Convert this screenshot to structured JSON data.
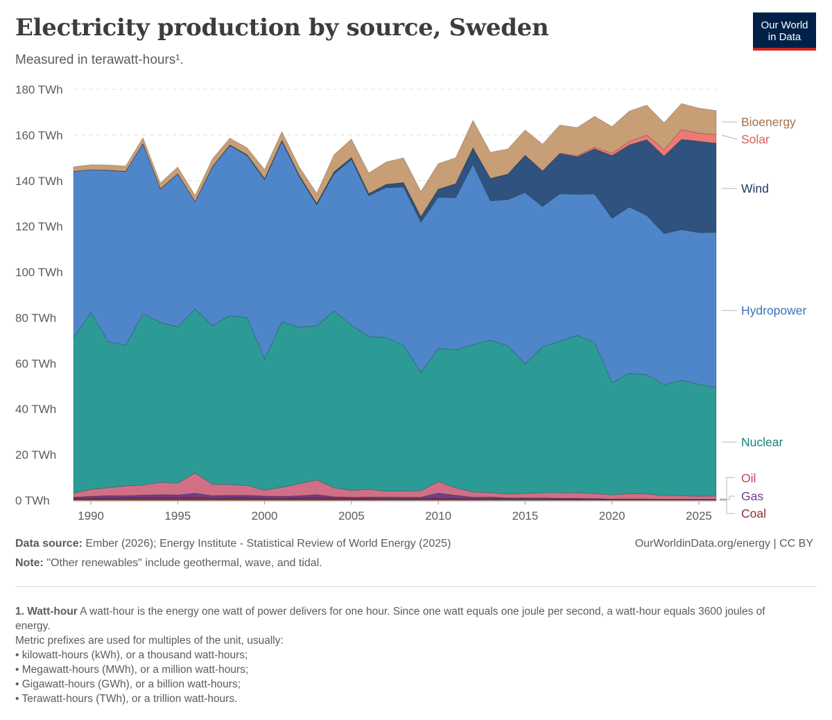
{
  "header": {
    "title": "Electricity production by source, Sweden",
    "subtitle": "Measured in terawatt-hours¹.",
    "logo_line1": "Our World",
    "logo_line2": "in Data"
  },
  "chart_data": {
    "type": "area",
    "stacked": true,
    "title": "Electricity production by source, Sweden",
    "ylabel": "TWh",
    "xlabel": "",
    "ylim": [
      0,
      180
    ],
    "xlim": [
      1989,
      2026
    ],
    "y_ticks": [
      0,
      20,
      40,
      60,
      80,
      100,
      120,
      140,
      160,
      180
    ],
    "y_tick_labels": [
      "0 TWh",
      "20 TWh",
      "40 TWh",
      "60 TWh",
      "80 TWh",
      "100 TWh",
      "120 TWh",
      "140 TWh",
      "160 TWh",
      "180 TWh"
    ],
    "x_ticks": [
      1990,
      1995,
      2000,
      2005,
      2010,
      2015,
      2020,
      2025
    ],
    "x_tick_labels": [
      "1990",
      "1995",
      "2000",
      "2005",
      "2010",
      "2015",
      "2020",
      "2025"
    ],
    "grid": "horizontal dashed",
    "legend": "right, inline labels",
    "x": [
      1989,
      1990,
      1991,
      1992,
      1993,
      1994,
      1995,
      1996,
      1997,
      1998,
      1999,
      2000,
      2001,
      2002,
      2003,
      2004,
      2005,
      2006,
      2007,
      2008,
      2009,
      2010,
      2011,
      2012,
      2013,
      2014,
      2015,
      2016,
      2017,
      2018,
      2019,
      2020,
      2021,
      2022,
      2023,
      2024,
      2025,
      2026
    ],
    "series": [
      {
        "name": "Coal",
        "color": "#883039",
        "values": [
          0.9,
          1.0,
          1.1,
          1.2,
          1.2,
          1.3,
          1.3,
          1.5,
          1.1,
          1.2,
          1.2,
          1.0,
          1.0,
          1.1,
          1.3,
          1.0,
          0.9,
          0.9,
          0.8,
          0.8,
          0.8,
          1.0,
          0.9,
          0.8,
          0.8,
          0.7,
          0.7,
          0.7,
          0.6,
          0.6,
          0.5,
          0.4,
          0.4,
          0.4,
          0.3,
          0.3,
          0.3,
          0.3
        ]
      },
      {
        "name": "Gas",
        "color": "#6d3e91",
        "values": [
          0.5,
          0.8,
          1.0,
          0.9,
          1.1,
          1.2,
          1.1,
          1.6,
          1.0,
          1.0,
          1.0,
          0.9,
          0.8,
          0.9,
          1.2,
          0.6,
          0.5,
          0.6,
          0.7,
          0.6,
          0.6,
          2.2,
          1.3,
          0.6,
          0.7,
          0.4,
          0.4,
          0.4,
          0.3,
          0.3,
          0.3,
          0.2,
          0.2,
          0.2,
          0.2,
          0.2,
          0.2,
          0.2
        ]
      },
      {
        "name": "Oil",
        "color": "#d07086",
        "values": [
          1.7,
          3.0,
          3.4,
          4.2,
          4.4,
          5.4,
          5.1,
          8.9,
          4.9,
          4.7,
          4.3,
          2.5,
          3.9,
          5.3,
          6.4,
          3.9,
          2.9,
          3.3,
          2.5,
          2.7,
          2.8,
          5.0,
          3.3,
          2.2,
          1.9,
          1.6,
          1.9,
          2.2,
          2.4,
          2.5,
          2.2,
          1.8,
          2.3,
          2.2,
          1.6,
          1.5,
          1.3,
          1.4
        ]
      },
      {
        "name": "Nuclear",
        "color": "#2c9b95",
        "values": [
          68.0,
          77.5,
          64.0,
          61.7,
          75.0,
          70.0,
          68.5,
          71.8,
          69.5,
          74.0,
          73.5,
          57.5,
          72.5,
          68.5,
          67.5,
          77.5,
          72.5,
          66.9,
          67.3,
          63.8,
          51.8,
          58.4,
          60.5,
          64.6,
          66.8,
          65.0,
          56.8,
          63.9,
          66.5,
          68.8,
          66.2,
          49.1,
          52.7,
          52.2,
          48.6,
          50.6,
          49.0,
          47.5
        ]
      },
      {
        "name": "Hydropower",
        "color": "#4e86c9",
        "values": [
          73.0,
          62.5,
          75.0,
          76.0,
          74.5,
          58.5,
          67.0,
          47.0,
          69.5,
          74.5,
          71.0,
          78.5,
          79.0,
          66.0,
          53.0,
          60.0,
          72.5,
          61.7,
          65.7,
          69.3,
          65.8,
          66.2,
          66.6,
          79.0,
          61.0,
          64.0,
          75.0,
          61.5,
          64.5,
          61.8,
          65.0,
          72.0,
          72.9,
          69.8,
          66.1,
          66.0,
          66.5,
          68.0
        ]
      },
      {
        "name": "Wind",
        "color": "#2f527e",
        "values": [
          0.0,
          0.0,
          0.1,
          0.1,
          0.1,
          0.1,
          0.1,
          0.1,
          0.2,
          0.3,
          0.4,
          0.5,
          0.5,
          0.6,
          0.7,
          0.9,
          0.9,
          1.0,
          1.4,
          2.0,
          2.5,
          3.5,
          6.1,
          7.2,
          9.8,
          11.2,
          16.3,
          15.5,
          17.6,
          16.5,
          19.8,
          27.5,
          27.2,
          33.2,
          34.0,
          39.5,
          40.0,
          39.0
        ]
      },
      {
        "name": "Solar",
        "color": "#ee7a73",
        "values": [
          0,
          0,
          0,
          0,
          0,
          0,
          0,
          0,
          0,
          0,
          0,
          0,
          0,
          0,
          0,
          0,
          0,
          0,
          0,
          0,
          0,
          0,
          0,
          0,
          0,
          0,
          0.1,
          0.1,
          0.2,
          0.4,
          0.7,
          1.0,
          1.5,
          2.0,
          2.8,
          4.3,
          3.5,
          3.8
        ]
      },
      {
        "name": "Bioenergy",
        "color": "#c89e76",
        "values": [
          2.0,
          2.2,
          2.3,
          2.3,
          2.5,
          2.5,
          2.9,
          2.7,
          3.4,
          3.0,
          3.0,
          4.0,
          3.8,
          3.6,
          4.4,
          7.5,
          8.0,
          9.0,
          9.8,
          10.8,
          11.0,
          11.2,
          11.3,
          12.0,
          11.5,
          11.0,
          11.0,
          11.7,
          12.3,
          12.4,
          13.5,
          11.7,
          13.3,
          13.1,
          11.8,
          11.4,
          11.0,
          10.5
        ]
      }
    ]
  },
  "labels": {
    "bioenergy": "Bioenergy",
    "solar": "Solar",
    "wind": "Wind",
    "hydropower": "Hydropower",
    "nuclear": "Nuclear",
    "oil": "Oil",
    "gas": "Gas",
    "coal": "Coal"
  },
  "label_colors": {
    "bioenergy": "#a2724b",
    "solar": "#d35f5a",
    "wind": "#19365f",
    "hydropower": "#3a72ba",
    "nuclear": "#178178",
    "oil": "#b8456a",
    "gas": "#6d3e91",
    "coal": "#883039"
  },
  "footer": {
    "source_label": "Data source:",
    "source_text": " Ember (2026); Energy Institute - Statistical Review of World Energy (2025)",
    "site": "OurWorldinData.org/energy | CC BY",
    "note_label": "Note:",
    "note_text": " \"Other renewables\" include geothermal, wave, and tidal.",
    "fn_label": "1. Watt-hour",
    "fn_text": " A watt-hour is the energy one watt of power delivers for one hour. Since one watt equals one joule per second, a watt-hour equals 3600 joules of energy.",
    "fn_prefix": "Metric prefixes are used for multiples of the unit, usually:",
    "fn_items": [
      "kilowatt-hours (kWh), or a thousand watt-hours;",
      "Megawatt-hours (MWh), or a million watt-hours;",
      "Gigawatt-hours (GWh), or a billion watt-hours;",
      "Terawatt-hours (TWh), or a trillion watt-hours."
    ]
  }
}
